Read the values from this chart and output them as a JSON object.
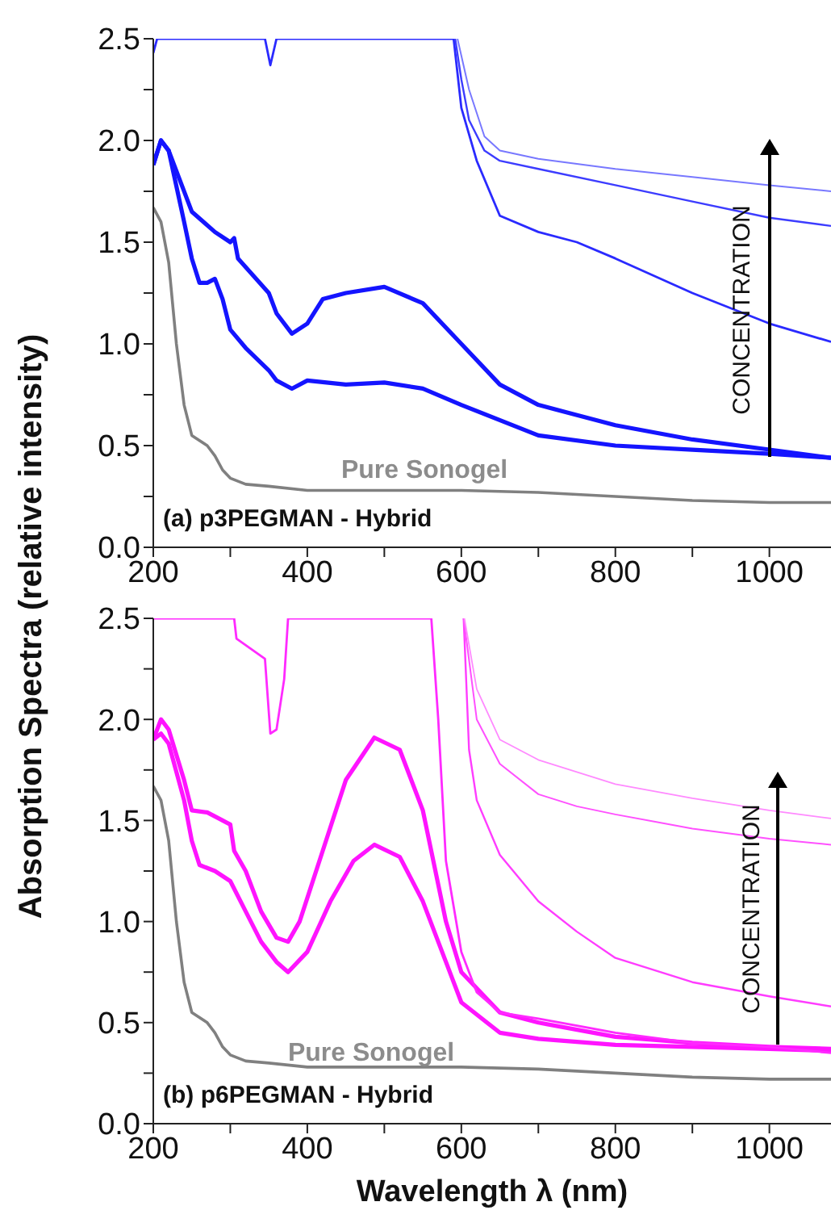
{
  "chart_data": [
    {
      "type": "line",
      "title": "(a) p3PEGMAN - Hybrid",
      "ylabel": "Absorption Spectra (relative intensity)",
      "xlim": [
        200,
        1080
      ],
      "xticks": [
        200,
        {
          "value": 300,
          "label": null
        },
        400,
        {
          "value": 500,
          "label": null
        },
        600,
        {
          "value": 700,
          "label": null
        },
        800,
        {
          "value": 900,
          "label": null
        },
        1000
      ],
      "ylim": [
        0,
        2.5
      ],
      "yticks": [
        {
          "value": 0,
          "label": "0.0"
        },
        {
          "value": 0.25,
          "label": null
        },
        0.5,
        {
          "value": 0.75,
          "label": null
        },
        {
          "value": 1,
          "label": "1.0"
        },
        {
          "value": 1.25,
          "label": null
        },
        1.5,
        {
          "value": 1.75,
          "label": null
        },
        {
          "value": 2,
          "label": "2.0"
        },
        {
          "value": 2.25,
          "label": null
        },
        2.5
      ],
      "annotations": [
        "Pure Sonogel",
        "CONCENTRATION"
      ],
      "series": [
        {
          "color": "#808080",
          "x": [
            200,
            210,
            220,
            230,
            240,
            250,
            270,
            280,
            290,
            300,
            320,
            350,
            400,
            500,
            600,
            700,
            800,
            900,
            1000,
            1080
          ],
          "values": [
            1.67,
            1.6,
            1.4,
            1.0,
            0.7,
            0.55,
            0.5,
            0.45,
            0.38,
            0.34,
            0.31,
            0.3,
            0.28,
            0.28,
            0.28,
            0.27,
            0.25,
            0.23,
            0.22,
            0.22
          ]
        },
        {
          "color": "#1414ff",
          "x": [
            200,
            210,
            220,
            240,
            250,
            260,
            270,
            280,
            290,
            300,
            320,
            350,
            360,
            380,
            400,
            450,
            500,
            550,
            600,
            700,
            800,
            900,
            1000,
            1080
          ],
          "values": [
            1.88,
            2.0,
            1.95,
            1.6,
            1.42,
            1.3,
            1.3,
            1.32,
            1.22,
            1.07,
            0.98,
            0.87,
            0.82,
            0.78,
            0.82,
            0.8,
            0.81,
            0.78,
            0.7,
            0.55,
            0.5,
            0.48,
            0.46,
            0.44
          ]
        },
        {
          "color": "#1414ff",
          "x": [
            200,
            210,
            220,
            250,
            280,
            300,
            305,
            310,
            350,
            360,
            380,
            400,
            420,
            450,
            500,
            550,
            600,
            650,
            700,
            800,
            900,
            1000,
            1080
          ],
          "values": [
            1.88,
            2.0,
            1.95,
            1.65,
            1.55,
            1.5,
            1.52,
            1.42,
            1.25,
            1.15,
            1.05,
            1.1,
            1.22,
            1.25,
            1.28,
            1.2,
            1.0,
            0.8,
            0.7,
            0.6,
            0.53,
            0.48,
            0.44
          ]
        },
        {
          "color": "#2a2aff",
          "x": [
            200,
            205,
            345,
            352,
            360,
            590,
            600,
            620,
            650,
            700,
            750,
            800,
            900,
            1000,
            1080
          ],
          "values": [
            2.43,
            2.5,
            2.5,
            2.37,
            2.5,
            2.5,
            2.16,
            1.9,
            1.63,
            1.55,
            1.5,
            1.42,
            1.25,
            1.1,
            1.01
          ]
        },
        {
          "color": "#3c3cff",
          "x": [
            592,
            600,
            610,
            630,
            650,
            700,
            800,
            900,
            1000,
            1080
          ],
          "values": [
            2.5,
            2.3,
            2.1,
            1.95,
            1.9,
            1.86,
            1.78,
            1.7,
            1.62,
            1.58
          ]
        },
        {
          "color": "#7878ff",
          "x": [
            595,
            610,
            630,
            650,
            700,
            800,
            900,
            1000,
            1080
          ],
          "values": [
            2.5,
            2.25,
            2.02,
            1.95,
            1.91,
            1.86,
            1.82,
            1.78,
            1.75
          ]
        }
      ]
    },
    {
      "type": "line",
      "title": "(b) p6PEGMAN - Hybrid",
      "xlabel": "Wavelength λ (nm)",
      "xlim": [
        200,
        1080
      ],
      "xticks": [
        200,
        {
          "value": 300,
          "label": null
        },
        400,
        {
          "value": 500,
          "label": null
        },
        600,
        {
          "value": 700,
          "label": null
        },
        800,
        {
          "value": 900,
          "label": null
        },
        1000
      ],
      "ylim": [
        0,
        2.5
      ],
      "yticks": [
        {
          "value": 0,
          "label": "0.0"
        },
        {
          "value": 0.25,
          "label": null
        },
        0.5,
        {
          "value": 0.75,
          "label": null
        },
        {
          "value": 1,
          "label": "1.0"
        },
        {
          "value": 1.25,
          "label": null
        },
        1.5,
        {
          "value": 1.75,
          "label": null
        },
        {
          "value": 2,
          "label": "2.0"
        },
        {
          "value": 2.25,
          "label": null
        },
        2.5
      ],
      "annotations": [
        "Pure Sonogel",
        "CONCENTRATION"
      ],
      "series": [
        {
          "color": "#808080",
          "x": [
            200,
            210,
            220,
            230,
            240,
            250,
            270,
            280,
            290,
            300,
            320,
            350,
            400,
            500,
            600,
            700,
            800,
            900,
            1000,
            1080
          ],
          "values": [
            1.67,
            1.6,
            1.4,
            1.0,
            0.7,
            0.55,
            0.5,
            0.45,
            0.38,
            0.34,
            0.31,
            0.3,
            0.28,
            0.28,
            0.28,
            0.27,
            0.25,
            0.23,
            0.22,
            0.22
          ]
        },
        {
          "color": "#ff14ff",
          "x": [
            200,
            210,
            220,
            240,
            250,
            260,
            280,
            300,
            320,
            340,
            360,
            375,
            400,
            430,
            460,
            487,
            520,
            550,
            580,
            600,
            650,
            700,
            800,
            900,
            1000,
            1080
          ],
          "values": [
            1.9,
            1.93,
            1.88,
            1.6,
            1.4,
            1.28,
            1.25,
            1.2,
            1.05,
            0.9,
            0.8,
            0.75,
            0.85,
            1.1,
            1.3,
            1.38,
            1.32,
            1.1,
            0.8,
            0.6,
            0.45,
            0.42,
            0.39,
            0.38,
            0.37,
            0.36
          ]
        },
        {
          "color": "#ff14ff",
          "x": [
            200,
            210,
            220,
            240,
            250,
            270,
            290,
            300,
            305,
            320,
            340,
            360,
            375,
            390,
            420,
            450,
            487,
            520,
            550,
            580,
            600,
            650,
            700,
            800,
            900,
            1000,
            1080
          ],
          "values": [
            1.9,
            2.0,
            1.95,
            1.7,
            1.55,
            1.54,
            1.5,
            1.48,
            1.35,
            1.25,
            1.05,
            0.92,
            0.9,
            1.0,
            1.35,
            1.7,
            1.91,
            1.85,
            1.55,
            1.0,
            0.75,
            0.55,
            0.5,
            0.43,
            0.4,
            0.38,
            0.37
          ]
        },
        {
          "color": "#ff2aff",
          "x": [
            200,
            305,
            308,
            345,
            352,
            360,
            370,
            375,
            561,
            570,
            580,
            600,
            620,
            650,
            700,
            800,
            900,
            1000,
            1080
          ],
          "values": [
            2.5,
            2.5,
            2.4,
            2.3,
            1.93,
            1.95,
            2.2,
            2.5,
            2.5,
            2.0,
            1.3,
            0.85,
            0.65,
            0.55,
            0.52,
            0.45,
            0.4,
            0.38,
            0.35
          ]
        },
        {
          "color": "#ff3cff",
          "x": [
            603,
            610,
            620,
            650,
            700,
            750,
            800,
            900,
            1000,
            1080
          ],
          "values": [
            2.5,
            1.85,
            1.6,
            1.33,
            1.1,
            0.95,
            0.82,
            0.7,
            0.63,
            0.58
          ]
        },
        {
          "color": "#ff50ff",
          "x": [
            603,
            620,
            650,
            700,
            750,
            800,
            900,
            1000,
            1080
          ],
          "values": [
            2.5,
            2.0,
            1.78,
            1.63,
            1.57,
            1.53,
            1.46,
            1.41,
            1.38
          ]
        },
        {
          "color": "#ff8aff",
          "x": [
            604,
            620,
            650,
            700,
            800,
            900,
            1000,
            1080
          ],
          "values": [
            2.5,
            2.15,
            1.9,
            1.8,
            1.68,
            1.61,
            1.55,
            1.51
          ]
        }
      ]
    }
  ]
}
